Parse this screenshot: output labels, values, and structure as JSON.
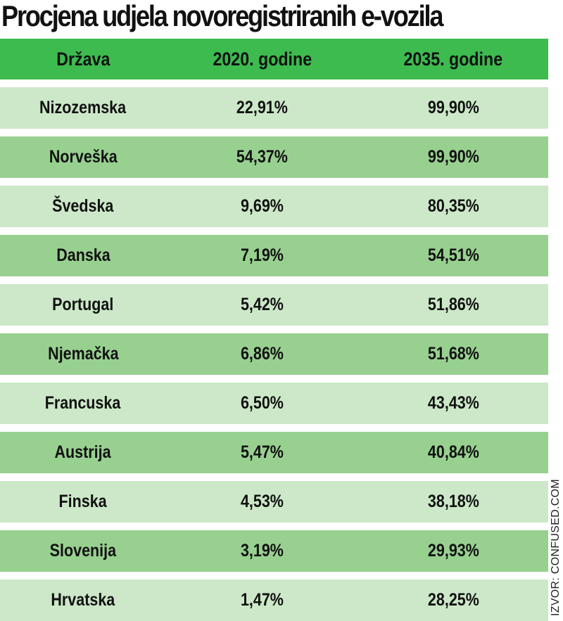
{
  "title": "Procjena udjela novoregistriranih e-vozila",
  "source": "IZVOR: CONFUSED.COM",
  "colors": {
    "header": "#3dbb4f",
    "row_light": "#cce8c8",
    "row_dark": "#98d090"
  },
  "chart_data": {
    "type": "table",
    "title": "Procjena udjela novoregistriranih e-vozila",
    "columns": [
      "Država",
      "2020. godine",
      "2035. godine"
    ],
    "rows": [
      [
        "Nizozemska",
        "22,91%",
        "99,90%"
      ],
      [
        "Norveška",
        "54,37%",
        "99,90%"
      ],
      [
        "Švedska",
        "9,69%",
        "80,35%"
      ],
      [
        "Danska",
        "7,19%",
        "54,51%"
      ],
      [
        "Portugal",
        "5,42%",
        "51,86%"
      ],
      [
        "Njemačka",
        "6,86%",
        "51,68%"
      ],
      [
        "Francuska",
        "6,50%",
        "43,43%"
      ],
      [
        "Austrija",
        "5,47%",
        "40,84%"
      ],
      [
        "Finska",
        "4,53%",
        "38,18%"
      ],
      [
        "Slovenija",
        "3,19%",
        "29,93%"
      ],
      [
        "Hrvatska",
        "1,47%",
        "28,25%"
      ]
    ],
    "source": "IZVOR: CONFUSED.COM"
  }
}
